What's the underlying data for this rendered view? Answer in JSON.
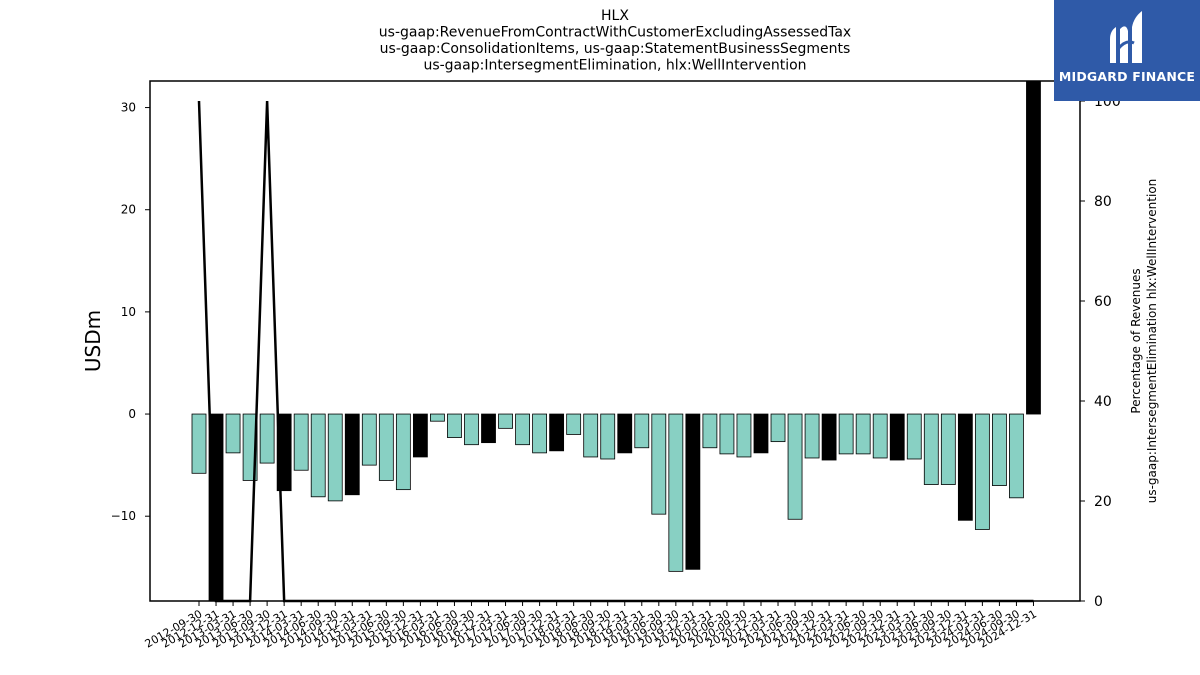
{
  "chart_data": {
    "type": "bar",
    "title_lines": [
      "HLX",
      "us-gaap:RevenueFromContractWithCustomerExcludingAssessedTax",
      "us-gaap:ConsolidationItems, us-gaap:StatementBusinessSegments",
      "us-gaap:IntersegmentElimination, hlx:WellIntervention"
    ],
    "ylabel": "USDm",
    "y2label_lines": [
      "Percentage of Revenues",
      "us-gaap:IntersegmentElimination hlx:WellIntervention"
    ],
    "ylim": [
      -18.3,
      32.6
    ],
    "y2lim": [
      0,
      104
    ],
    "yticks": [
      -10,
      0,
      10,
      20,
      30
    ],
    "y2ticks": [
      0,
      20,
      40,
      60,
      80,
      100
    ],
    "bar_colors": {
      "quarterly": "#88d0c3",
      "annual": "#000000"
    },
    "grid": false,
    "categories": [
      "2012-09-30",
      "2012-12-31",
      "2013-03-31",
      "2013-06-30",
      "2013-09-30",
      "2013-12-31",
      "2014-03-31",
      "2014-06-30",
      "2014-09-30",
      "2014-12-31",
      "2015-03-31",
      "2015-06-30",
      "2015-09-30",
      "2015-12-31",
      "2016-03-31",
      "2016-06-30",
      "2016-09-30",
      "2016-12-31",
      "2017-03-31",
      "2017-06-30",
      "2017-09-30",
      "2017-12-31",
      "2018-03-31",
      "2018-06-30",
      "2018-09-30",
      "2018-12-31",
      "2019-03-31",
      "2019-06-30",
      "2019-09-30",
      "2019-12-31",
      "2020-03-31",
      "2020-06-30",
      "2020-09-30",
      "2020-12-31",
      "2021-03-31",
      "2021-06-30",
      "2021-09-30",
      "2021-12-31",
      "2022-03-31",
      "2022-06-30",
      "2022-09-30",
      "2022-12-31",
      "2023-03-31",
      "2023-06-30",
      "2023-09-30",
      "2023-12-31",
      "2024-03-31",
      "2024-06-30",
      "2024-09-30",
      "2024-12-31"
    ],
    "xtick_labels": [
      "2012-09-30",
      "2012-12-31",
      "2013-03-31",
      "2013-06-30",
      "2013-09-30",
      "2013-12-31",
      "2014-03-31",
      "2014-06-30",
      "2014-09-30",
      "2014-12-31",
      "2015-03-31",
      "2015-06-30",
      "2015-09-30",
      "2015-12-31",
      "2016-03-31",
      "2016-06-30",
      "2016-09-30",
      "2016-12-31",
      "2017-03-31",
      "2017-06-30",
      "2017-09-30",
      "2017-12-31",
      "2018-03-31",
      "2018-06-30",
      "2018-09-30",
      "2018-12-31",
      "2019-03-31",
      "2019-06-30",
      "2019-09-30",
      "2019-12-31",
      "2020-03-31",
      "2020-06-30",
      "2020-09-30",
      "2020-12-31",
      "2021-03-31",
      "2021-06-30",
      "2021-09-30",
      "2021-12-31",
      "2022-03-31",
      "2022-06-30",
      "2022-09-30",
      "2022-12-31",
      "2023-03-31",
      "2023-06-30",
      "2023-09-30",
      "2023-12-31",
      "2024-03-31",
      "2024-06-30",
      "2024-09-30",
      "2024-12-31"
    ],
    "series": [
      {
        "kind": "bar",
        "axis": "left",
        "values": [
          -5.8,
          -18.3,
          -3.8,
          -6.5,
          -4.8,
          -7.5,
          -5.5,
          -8.1,
          -8.5,
          -7.9,
          -5.0,
          -6.5,
          -7.4,
          -4.2,
          -0.7,
          -2.3,
          -3.0,
          -2.8,
          -1.4,
          -3.0,
          -3.8,
          -3.6,
          -2.0,
          -4.2,
          -4.4,
          -3.8,
          -3.3,
          -9.8,
          -15.4,
          -15.2,
          -3.3,
          -3.9,
          -4.2,
          -3.8,
          -2.7,
          -10.3,
          -4.3,
          -4.5,
          -3.9,
          -3.9,
          -4.3,
          -4.5,
          -4.4,
          -6.9,
          -6.9,
          -10.4,
          -11.3,
          -7.0,
          -8.2,
          32.6
        ],
        "annual": [
          false,
          true,
          false,
          false,
          false,
          true,
          false,
          false,
          false,
          true,
          false,
          false,
          false,
          true,
          false,
          false,
          false,
          true,
          false,
          false,
          false,
          true,
          false,
          false,
          false,
          true,
          false,
          false,
          false,
          true,
          false,
          false,
          false,
          true,
          false,
          false,
          false,
          true,
          false,
          false,
          false,
          true,
          false,
          false,
          false,
          true,
          false,
          false,
          false,
          true
        ]
      },
      {
        "kind": "line",
        "axis": "right",
        "color": "#000000",
        "values": [
          100,
          0,
          0,
          0,
          100,
          0,
          0,
          0,
          0,
          0,
          0,
          0,
          0,
          0,
          0,
          0,
          0,
          0,
          0,
          0,
          0,
          0,
          0,
          0,
          0,
          0,
          0,
          0,
          0,
          0,
          0,
          0,
          0,
          0,
          0,
          0,
          0,
          0,
          0,
          0,
          0,
          0,
          0,
          0,
          0,
          0,
          0,
          0,
          0,
          0
        ]
      }
    ]
  },
  "logo": {
    "text": "MIDGARD FINANCE",
    "background": "#2f5aa8"
  }
}
